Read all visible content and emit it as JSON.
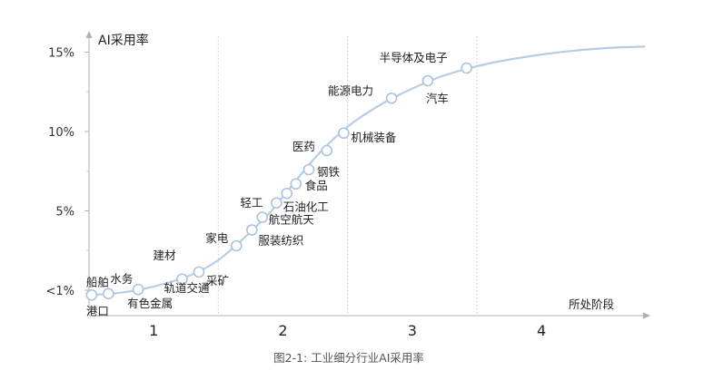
{
  "chart_data": {
    "type": "line",
    "title": "",
    "ylabel": "AI采用率",
    "xlabel": "所处阶段",
    "caption": "图2-1: 工业细分行业AI采用率",
    "y_ticks": [
      "<1%",
      "5%",
      "10%",
      "15%"
    ],
    "y_tick_values": [
      0,
      5,
      10,
      15
    ],
    "ylim": [
      -1.6,
      16
    ],
    "xlim": [
      0.5,
      4.8
    ],
    "stages": [
      1,
      2,
      3,
      4
    ],
    "stage_boundaries": [
      1.5,
      2.5,
      3.5
    ],
    "grid": "vertical dashed stage separators",
    "line_color": "#b7cde6",
    "marker_edge_color": "#a9c3e0",
    "curve_x": [
      0.5,
      0.7,
      0.9,
      1.1,
      1.3,
      1.5,
      1.7,
      1.9,
      2.0,
      2.1,
      2.2,
      2.3,
      2.4,
      2.5,
      2.6,
      2.8,
      3.0,
      3.2,
      3.4,
      3.6,
      3.8,
      4.0,
      4.2,
      4.4,
      4.6,
      4.8
    ],
    "curve_y": [
      -0.3,
      -0.2,
      0.05,
      0.45,
      1.0,
      1.9,
      3.3,
      4.9,
      5.9,
      6.9,
      7.9,
      8.8,
      9.6,
      10.3,
      10.9,
      11.9,
      12.7,
      13.4,
      13.9,
      14.3,
      14.6,
      14.85,
      15.05,
      15.2,
      15.3,
      15.35
    ],
    "points": [
      {
        "name": "船舶",
        "x": 0.52,
        "y": -0.3
      },
      {
        "name": "港口",
        "x": 0.52,
        "y": -0.3
      },
      {
        "name": "水务",
        "x": 0.65,
        "y": -0.22
      },
      {
        "name": "有色金属",
        "x": 0.88,
        "y": 0.05
      },
      {
        "name": "建材",
        "x": 1.22,
        "y": 0.7
      },
      {
        "name": "轨道交通",
        "x": 1.22,
        "y": 0.7
      },
      {
        "name": "采矿",
        "x": 1.35,
        "y": 1.15
      },
      {
        "name": "家电",
        "x": 1.64,
        "y": 2.8
      },
      {
        "name": "服装纺织",
        "x": 1.76,
        "y": 3.8
      },
      {
        "name": "航空航天",
        "x": 1.84,
        "y": 4.6
      },
      {
        "name": "轻工",
        "x": 1.95,
        "y": 5.5
      },
      {
        "name": "石油化工",
        "x": 2.03,
        "y": 6.1
      },
      {
        "name": "食品",
        "x": 2.1,
        "y": 6.7
      },
      {
        "name": "钢铁",
        "x": 2.2,
        "y": 7.6
      },
      {
        "name": "医药",
        "x": 2.34,
        "y": 8.8
      },
      {
        "name": "机械装备",
        "x": 2.47,
        "y": 9.9
      },
      {
        "name": "能源电力",
        "x": 2.84,
        "y": 12.1
      },
      {
        "name": "汽车",
        "x": 3.12,
        "y": 13.2
      },
      {
        "name": "半导体及电子",
        "x": 3.42,
        "y": 14.0
      }
    ]
  }
}
